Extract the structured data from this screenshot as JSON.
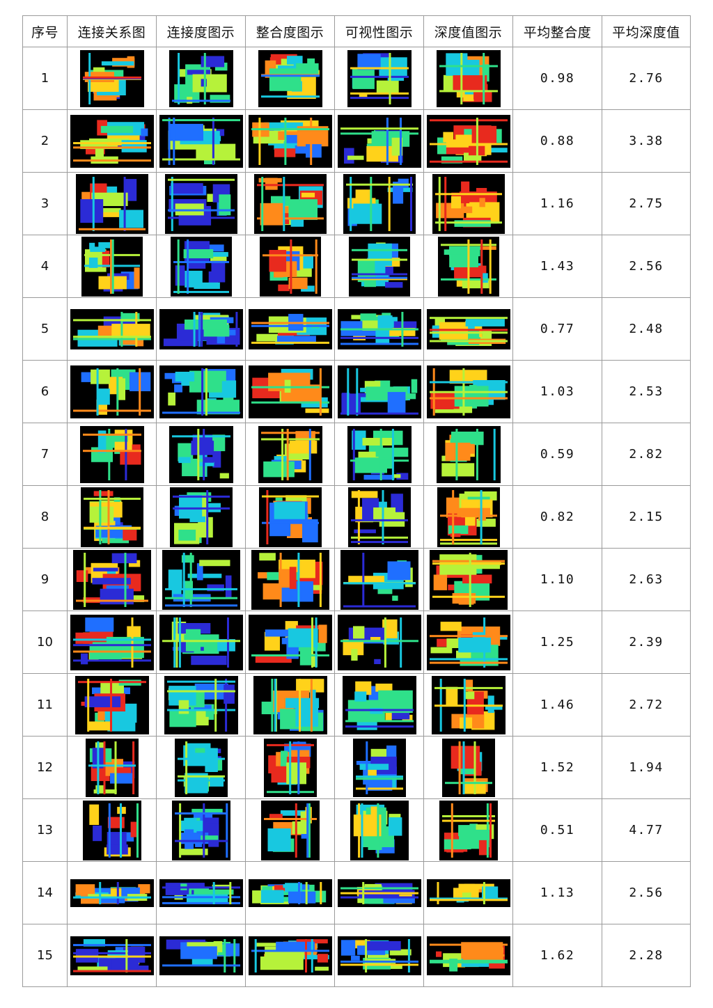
{
  "table": {
    "headers": [
      "序号",
      "连接关系图",
      "连接度图示",
      "整合度图示",
      "可视性图示",
      "深度值图示",
      "平均整合度",
      "平均深度值"
    ],
    "thumbnail_kinds": [
      "connection-relation-map",
      "connectivity-map",
      "integration-map",
      "visibility-map",
      "depth-map"
    ],
    "rows": [
      {
        "index": "1",
        "avg_integration": "0.98",
        "avg_depth": "2.76"
      },
      {
        "index": "2",
        "avg_integration": "0.88",
        "avg_depth": "3.38"
      },
      {
        "index": "3",
        "avg_integration": "1.16",
        "avg_depth": "2.75"
      },
      {
        "index": "4",
        "avg_integration": "1.43",
        "avg_depth": "2.56"
      },
      {
        "index": "5",
        "avg_integration": "0.77",
        "avg_depth": "2.48"
      },
      {
        "index": "6",
        "avg_integration": "1.03",
        "avg_depth": "2.53"
      },
      {
        "index": "7",
        "avg_integration": "0.59",
        "avg_depth": "2.82"
      },
      {
        "index": "8",
        "avg_integration": "0.82",
        "avg_depth": "2.15"
      },
      {
        "index": "9",
        "avg_integration": "1.10",
        "avg_depth": "2.63"
      },
      {
        "index": "10",
        "avg_integration": "1.25",
        "avg_depth": "2.39"
      },
      {
        "index": "11",
        "avg_integration": "1.46",
        "avg_depth": "2.72"
      },
      {
        "index": "12",
        "avg_integration": "1.52",
        "avg_depth": "1.94"
      },
      {
        "index": "13",
        "avg_integration": "0.51",
        "avg_depth": "4.77"
      },
      {
        "index": "14",
        "avg_integration": "1.13",
        "avg_depth": "2.56"
      },
      {
        "index": "15",
        "avg_integration": "1.62",
        "avg_depth": "2.28"
      }
    ]
  },
  "colors": {
    "thumbnail_background": "#000000",
    "heatmap_palette": [
      "#2b2bd6",
      "#1f6fff",
      "#18c8e0",
      "#2fe08a",
      "#b6f23a",
      "#ffd21a",
      "#ff8a1a",
      "#e82a1e"
    ],
    "border": "#9a9a9a"
  }
}
